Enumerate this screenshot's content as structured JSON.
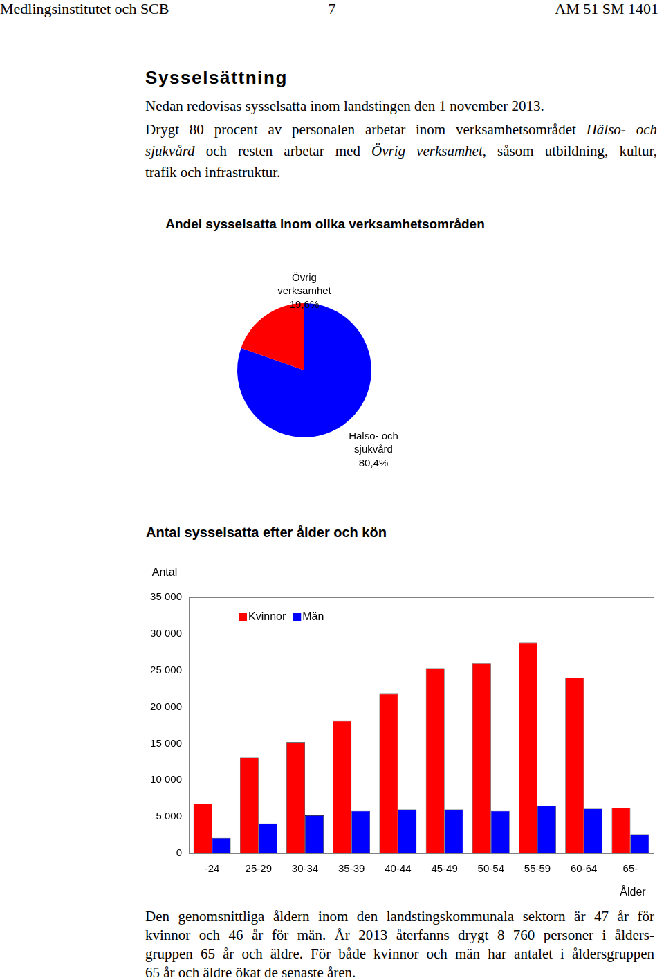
{
  "header": {
    "left": "Medlingsinstitutet och SCB",
    "center": "7",
    "right": "AM 51 SM 1401"
  },
  "heading": "Sysselsättning",
  "intro": [
    {
      "lines": [
        [
          {
            "text": "Nedan redovisas sysselsatta inom landstingen den 1 november 2013."
          }
        ]
      ]
    },
    {
      "lines": [
        [
          {
            "text": "Drygt 80 procent av personalen arbetar inom verksamhetsområdet "
          },
          {
            "text": "Hälso- och",
            "emphasis": true
          }
        ],
        [
          {
            "text": "sjukvård",
            "emphasis": true
          },
          {
            "text": " och resten arbetar med "
          },
          {
            "text": "Övrig verksamhet",
            "emphasis": true
          },
          {
            "text": ", såsom utbildning, kultur,"
          }
        ],
        [
          {
            "text": "trafik och infrastruktur."
          }
        ]
      ]
    }
  ],
  "chart_data": [
    {
      "type": "pie",
      "title": "Andel sysselsatta inom olika verksamhetsområden",
      "categories": [
        "Hälso- och sjukvård",
        "Övrig verksamhet"
      ],
      "values": [
        80.4,
        19.6
      ],
      "value_labels": [
        "80,4%",
        "19,6%"
      ],
      "colors": [
        "#0000ff",
        "#ff0000"
      ],
      "data_labels": true
    },
    {
      "type": "bar",
      "title": "Antal sysselsatta efter ålder och kön",
      "x_label": "Ålder",
      "y_label": "Antal",
      "categories": [
        "-24",
        "25-29",
        "30-34",
        "35-39",
        "40-44",
        "45-49",
        "50-54",
        "55-59",
        "60-64",
        "65-"
      ],
      "series": [
        {
          "name": "Kvinnor",
          "color": "#ff0000",
          "values": [
            6800,
            13100,
            15200,
            18100,
            21800,
            25300,
            26000,
            28800,
            24000,
            6200
          ]
        },
        {
          "name": "Män",
          "color": "#0000ff",
          "values": [
            2100,
            4100,
            5200,
            5800,
            6000,
            6000,
            5800,
            6500,
            6100,
            2600
          ]
        }
      ],
      "ylim": [
        0,
        35000
      ],
      "yticks": [
        0,
        {
          "value": 5000,
          "label": "5 000"
        },
        {
          "value": 10000,
          "label": "10 000"
        },
        {
          "value": 15000,
          "label": "15 000"
        },
        {
          "value": 20000,
          "label": "20 000"
        },
        {
          "value": 25000,
          "label": "25 000"
        },
        {
          "value": 30000,
          "label": "30 000"
        },
        {
          "value": 35000,
          "label": "35 000"
        }
      ],
      "grid": false,
      "legend": "upper left"
    }
  ],
  "closing": {
    "lines": [
      [
        {
          "text": "Den genomsnittliga åldern inom den landstingskommunala sektorn är 47 år för"
        }
      ],
      [
        {
          "text": "kvinnor och 46 år för män. År 2013 återfanns drygt 8 760 personer i ålders-"
        }
      ],
      [
        {
          "text": "gruppen 65 år och äldre. För både kvinnor och män har antalet i åldersgruppen"
        }
      ],
      [
        {
          "text": "65 år och äldre ökat de senaste åren."
        }
      ]
    ]
  }
}
